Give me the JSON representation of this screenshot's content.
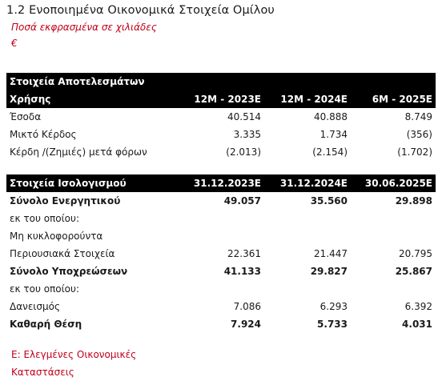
{
  "header": {
    "title": "1.2 Ενοποιημένα Οικονομικά Στοιχεία Ομίλου",
    "subtitle": "Ποσά εκφρασμένα σε χιλιάδες",
    "currency": "€"
  },
  "results": {
    "section_title": "Στοιχεία Αποτελεσμάτων",
    "header_label": "Χρήσης",
    "columns": [
      "12M - 2023E",
      "12M - 2024E",
      "6M - 2025E"
    ],
    "rows": [
      {
        "label": "Έσοδα",
        "values": [
          "40.514",
          "40.888",
          "8.749"
        ]
      },
      {
        "label": "Μικτό Κέρδος",
        "values": [
          "3.335",
          "1.734",
          "(356)"
        ]
      },
      {
        "label": "Κέρδη /(Ζημιές) μετά φόρων",
        "values": [
          "(2.013)",
          "(2.154)",
          "(1.702)"
        ]
      }
    ]
  },
  "balance": {
    "section_title": "Στοιχεία Ισολογισμού",
    "columns": [
      "31.12.2023E",
      "31.12.2024E",
      "30.06.2025E"
    ],
    "rows": [
      {
        "label": "Σύνολο Ενεργητικού",
        "values": [
          "49.057",
          "35.560",
          "29.898"
        ],
        "bold": true
      },
      {
        "label": "εκ του οποίου:",
        "values": [
          "",
          "",
          ""
        ],
        "bold": false
      },
      {
        "label": "Μη κυκλοφορούντα",
        "values": [
          "",
          "",
          ""
        ],
        "bold": false
      },
      {
        "label": "Περιουσιακά Στοιχεία",
        "values": [
          "22.361",
          "21.447",
          "20.795"
        ],
        "bold": false
      },
      {
        "label": "Σύνολο Υποχρεώσεων",
        "values": [
          "41.133",
          "29.827",
          "25.867"
        ],
        "bold": true
      },
      {
        "label": "εκ του οποίου:",
        "values": [
          "",
          "",
          ""
        ],
        "bold": false
      },
      {
        "label": "Δανεισμός",
        "values": [
          "7.086",
          "6.293",
          "6.392"
        ],
        "bold": false
      },
      {
        "label": "Καθαρή Θέση",
        "values": [
          "7.924",
          "5.733",
          "4.031"
        ],
        "bold": true
      }
    ]
  },
  "footnote": {
    "line1": "Ε: Ελεγμένες Οικονομικές",
    "line2": "Καταστάσεις"
  },
  "colors": {
    "accent_red": "#c0001a",
    "header_bg": "#000000"
  }
}
